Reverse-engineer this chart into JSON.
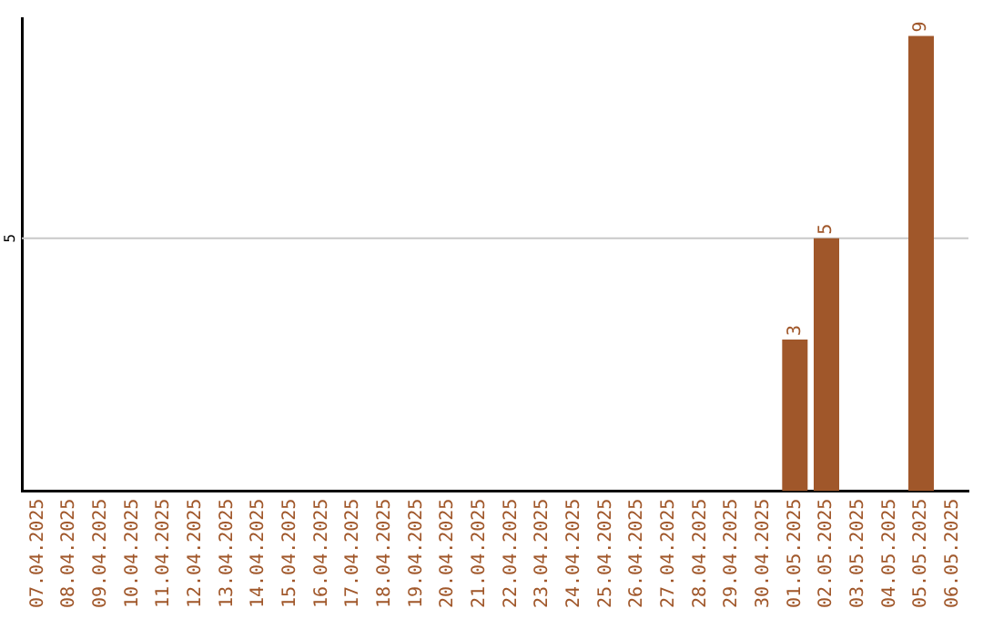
{
  "chart_data": {
    "type": "bar",
    "categories": [
      "07.04.2025",
      "08.04.2025",
      "09.04.2025",
      "10.04.2025",
      "11.04.2025",
      "12.04.2025",
      "13.04.2025",
      "14.04.2025",
      "15.04.2025",
      "16.04.2025",
      "17.04.2025",
      "18.04.2025",
      "19.04.2025",
      "20.04.2025",
      "21.04.2025",
      "22.04.2025",
      "23.04.2025",
      "24.04.2025",
      "25.04.2025",
      "26.04.2025",
      "27.04.2025",
      "28.04.2025",
      "29.04.2025",
      "30.04.2025",
      "01.05.2025",
      "02.05.2025",
      "03.05.2025",
      "04.05.2025",
      "05.05.2025",
      "06.05.2025"
    ],
    "values": [
      null,
      null,
      null,
      null,
      null,
      null,
      null,
      null,
      null,
      null,
      null,
      null,
      null,
      null,
      null,
      null,
      null,
      null,
      null,
      null,
      null,
      null,
      null,
      null,
      3,
      5,
      null,
      null,
      9,
      null
    ],
    "data_labels": true,
    "ylim": [
      0,
      9.35
    ],
    "ref_lines": [
      {
        "axis": "y",
        "value": 5,
        "label": "5",
        "color": "#c8c8c8"
      }
    ],
    "color": "#a0572a",
    "legend": false
  }
}
